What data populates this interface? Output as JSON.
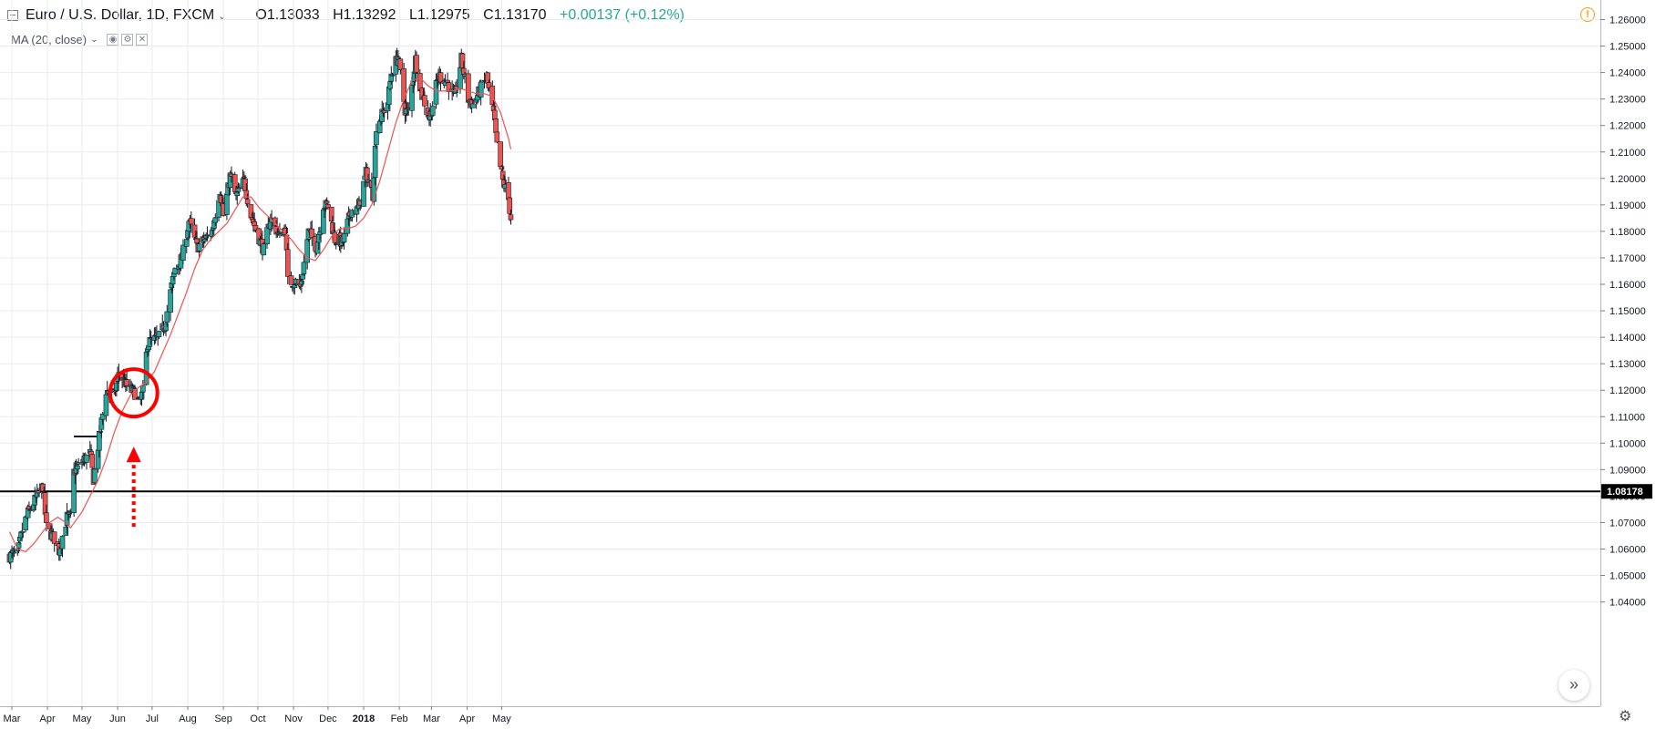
{
  "header": {
    "symbol": "Euro / U.S. Dollar, 1D, FXCM",
    "open": "O1.13033",
    "high": "H1.13292",
    "low": "L1.12975",
    "close": "C1.13170",
    "change": "+0.00137 (+0.12%)"
  },
  "indicator": {
    "label": "MA (20, close)"
  },
  "icons": {
    "collapse": "square-minus-icon",
    "dropdown": "chevron-down-icon",
    "warning": "warning-icon",
    "scroll": "double-chevron-right-icon",
    "settings": "gear-icon"
  },
  "colors": {
    "up": "#26a69a",
    "down": "#ef5350",
    "ma": "#ef5350",
    "annotation": "#ff0000",
    "grid": "#e9ebf0",
    "change_text": "#26a69a"
  },
  "chart_data": {
    "type": "candlestick",
    "title": "Euro / U.S. Dollar, 1D, FXCM",
    "xlabel": "",
    "ylabel": "",
    "x_ticks": [
      "Mar",
      "Apr",
      "May",
      "Jun",
      "Jul",
      "Aug",
      "Sep",
      "Oct",
      "Nov",
      "Dec",
      "2018",
      "Feb",
      "Mar",
      "Apr",
      "May"
    ],
    "y_ticks": [
      "1.04000",
      "1.05000",
      "1.06000",
      "1.07000",
      "1.08000",
      "1.09000",
      "1.10000",
      "1.11000",
      "1.12000",
      "1.13000",
      "1.14000",
      "1.15000",
      "1.16000",
      "1.17000",
      "1.18000",
      "1.19000",
      "1.20000",
      "1.21000",
      "1.22000",
      "1.23000",
      "1.24000",
      "1.25000",
      "1.26000"
    ],
    "ylim": [
      1.037,
      1.264
    ],
    "grid": true,
    "price_level": {
      "value": 1.08178,
      "label": "1.08178"
    },
    "segment_level": {
      "value": 1.1025,
      "from": "2017-04-24",
      "to": "2017-05-16"
    },
    "annotation": {
      "circle_center": {
        "date": "2017-06-15",
        "value": 1.119
      },
      "arrow": "dotted arrow pointing up to circle"
    },
    "series": [
      {
        "name": "EUR/USD daily (close path, approx.)",
        "anchors": [
          [
            "2017-02-27",
            1.0575
          ],
          [
            "2017-03-06",
            1.058
          ],
          [
            "2017-03-10",
            1.067
          ],
          [
            "2017-03-15",
            1.0735
          ],
          [
            "2017-03-23",
            1.08
          ],
          [
            "2017-03-28",
            1.084
          ],
          [
            "2017-03-31",
            1.068
          ],
          [
            "2017-04-07",
            1.064
          ],
          [
            "2017-04-11",
            1.0595
          ],
          [
            "2017-04-18",
            1.072
          ],
          [
            "2017-04-21",
            1.072
          ],
          [
            "2017-04-24",
            1.089
          ],
          [
            "2017-05-02",
            1.0935
          ],
          [
            "2017-05-08",
            1.096
          ],
          [
            "2017-05-11",
            1.0865
          ],
          [
            "2017-05-16",
            1.102
          ],
          [
            "2017-05-22",
            1.12
          ],
          [
            "2017-05-29",
            1.118
          ],
          [
            "2017-06-02",
            1.127
          ],
          [
            "2017-06-08",
            1.122
          ],
          [
            "2017-06-12",
            1.12
          ],
          [
            "2017-06-16",
            1.119
          ],
          [
            "2017-06-20",
            1.115
          ],
          [
            "2017-06-23",
            1.1195
          ],
          [
            "2017-06-27",
            1.138
          ],
          [
            "2017-07-03",
            1.139
          ],
          [
            "2017-07-07",
            1.14
          ],
          [
            "2017-07-12",
            1.145
          ],
          [
            "2017-07-17",
            1.157
          ],
          [
            "2017-07-21",
            1.166
          ],
          [
            "2017-07-27",
            1.17
          ],
          [
            "2017-08-02",
            1.184
          ],
          [
            "2017-08-09",
            1.174
          ],
          [
            "2017-08-16",
            1.177
          ],
          [
            "2017-08-22",
            1.18
          ],
          [
            "2017-08-29",
            1.196
          ],
          [
            "2017-09-01",
            1.186
          ],
          [
            "2017-09-07",
            1.201
          ],
          [
            "2017-09-12",
            1.193
          ],
          [
            "2017-09-19",
            1.199
          ],
          [
            "2017-09-25",
            1.186
          ],
          [
            "2017-09-29",
            1.181
          ],
          [
            "2017-10-06",
            1.173
          ],
          [
            "2017-10-12",
            1.185
          ],
          [
            "2017-10-20",
            1.178
          ],
          [
            "2017-10-25",
            1.1815
          ],
          [
            "2017-10-27",
            1.161
          ],
          [
            "2017-11-03",
            1.161
          ],
          [
            "2017-11-07",
            1.159
          ],
          [
            "2017-11-14",
            1.18
          ],
          [
            "2017-11-21",
            1.174
          ],
          [
            "2017-11-27",
            1.19
          ],
          [
            "2017-12-01",
            1.1895
          ],
          [
            "2017-12-07",
            1.177
          ],
          [
            "2017-12-14",
            1.176
          ],
          [
            "2017-12-21",
            1.188
          ],
          [
            "2017-12-27",
            1.188
          ],
          [
            "2018-01-03",
            1.202
          ],
          [
            "2018-01-09",
            1.194
          ],
          [
            "2018-01-12",
            1.22
          ],
          [
            "2018-01-17",
            1.224
          ],
          [
            "2018-01-22",
            1.229
          ],
          [
            "2018-01-25",
            1.24
          ],
          [
            "2018-01-31",
            1.246
          ],
          [
            "2018-02-06",
            1.226
          ],
          [
            "2018-02-09",
            1.225
          ],
          [
            "2018-02-15",
            1.245
          ],
          [
            "2018-02-20",
            1.233
          ],
          [
            "2018-02-27",
            1.223
          ],
          [
            "2018-03-01",
            1.226
          ],
          [
            "2018-03-07",
            1.239
          ],
          [
            "2018-03-14",
            1.237
          ],
          [
            "2018-03-21",
            1.23
          ],
          [
            "2018-03-27",
            1.245
          ],
          [
            "2018-04-02",
            1.23
          ],
          [
            "2018-04-06",
            1.228
          ],
          [
            "2018-04-13",
            1.234
          ],
          [
            "2018-04-18",
            1.238
          ],
          [
            "2018-04-24",
            1.224
          ],
          [
            "2018-04-27",
            1.212
          ],
          [
            "2018-05-02",
            1.199
          ],
          [
            "2018-05-07",
            1.192
          ],
          [
            "2018-05-09",
            1.185
          ]
        ]
      },
      {
        "name": "MA (20, close)",
        "anchors": [
          [
            "2017-02-27",
            1.0665
          ],
          [
            "2017-03-06",
            1.06
          ],
          [
            "2017-03-13",
            1.059
          ],
          [
            "2017-03-20",
            1.062
          ],
          [
            "2017-03-27",
            1.066
          ],
          [
            "2017-04-03",
            1.07
          ],
          [
            "2017-04-10",
            1.072
          ],
          [
            "2017-04-17",
            1.07
          ],
          [
            "2017-04-21",
            1.068
          ],
          [
            "2017-05-01",
            1.074
          ],
          [
            "2017-05-08",
            1.08
          ],
          [
            "2017-05-15",
            1.086
          ],
          [
            "2017-05-22",
            1.094
          ],
          [
            "2017-05-29",
            1.104
          ],
          [
            "2017-06-05",
            1.112
          ],
          [
            "2017-06-12",
            1.118
          ],
          [
            "2017-06-19",
            1.121
          ],
          [
            "2017-06-26",
            1.123
          ],
          [
            "2017-07-03",
            1.127
          ],
          [
            "2017-07-10",
            1.134
          ],
          [
            "2017-07-17",
            1.141
          ],
          [
            "2017-07-24",
            1.149
          ],
          [
            "2017-07-31",
            1.157
          ],
          [
            "2017-08-07",
            1.166
          ],
          [
            "2017-08-14",
            1.173
          ],
          [
            "2017-08-21",
            1.177
          ],
          [
            "2017-08-28",
            1.18
          ],
          [
            "2017-09-04",
            1.183
          ],
          [
            "2017-09-11",
            1.188
          ],
          [
            "2017-09-18",
            1.193
          ],
          [
            "2017-09-25",
            1.193
          ],
          [
            "2017-10-02",
            1.189
          ],
          [
            "2017-10-09",
            1.186
          ],
          [
            "2017-10-16",
            1.183
          ],
          [
            "2017-10-23",
            1.18
          ],
          [
            "2017-10-30",
            1.177
          ],
          [
            "2017-11-06",
            1.173
          ],
          [
            "2017-11-13",
            1.17
          ],
          [
            "2017-11-20",
            1.169
          ],
          [
            "2017-11-27",
            1.173
          ],
          [
            "2017-12-04",
            1.178
          ],
          [
            "2017-12-11",
            1.181
          ],
          [
            "2017-12-18",
            1.181
          ],
          [
            "2017-12-25",
            1.182
          ],
          [
            "2018-01-01",
            1.185
          ],
          [
            "2018-01-08",
            1.19
          ],
          [
            "2018-01-15",
            1.199
          ],
          [
            "2018-01-22",
            1.21
          ],
          [
            "2018-01-29",
            1.221
          ],
          [
            "2018-02-05",
            1.23
          ],
          [
            "2018-02-12",
            1.237
          ],
          [
            "2018-02-19",
            1.238
          ],
          [
            "2018-02-26",
            1.235
          ],
          [
            "2018-03-05",
            1.233
          ],
          [
            "2018-03-12",
            1.233
          ],
          [
            "2018-03-19",
            1.233
          ],
          [
            "2018-03-26",
            1.234
          ],
          [
            "2018-04-02",
            1.233
          ],
          [
            "2018-04-09",
            1.232
          ],
          [
            "2018-04-16",
            1.232
          ],
          [
            "2018-04-23",
            1.231
          ],
          [
            "2018-04-30",
            1.225
          ],
          [
            "2018-05-07",
            1.215
          ],
          [
            "2018-05-09",
            1.211
          ]
        ]
      }
    ]
  }
}
